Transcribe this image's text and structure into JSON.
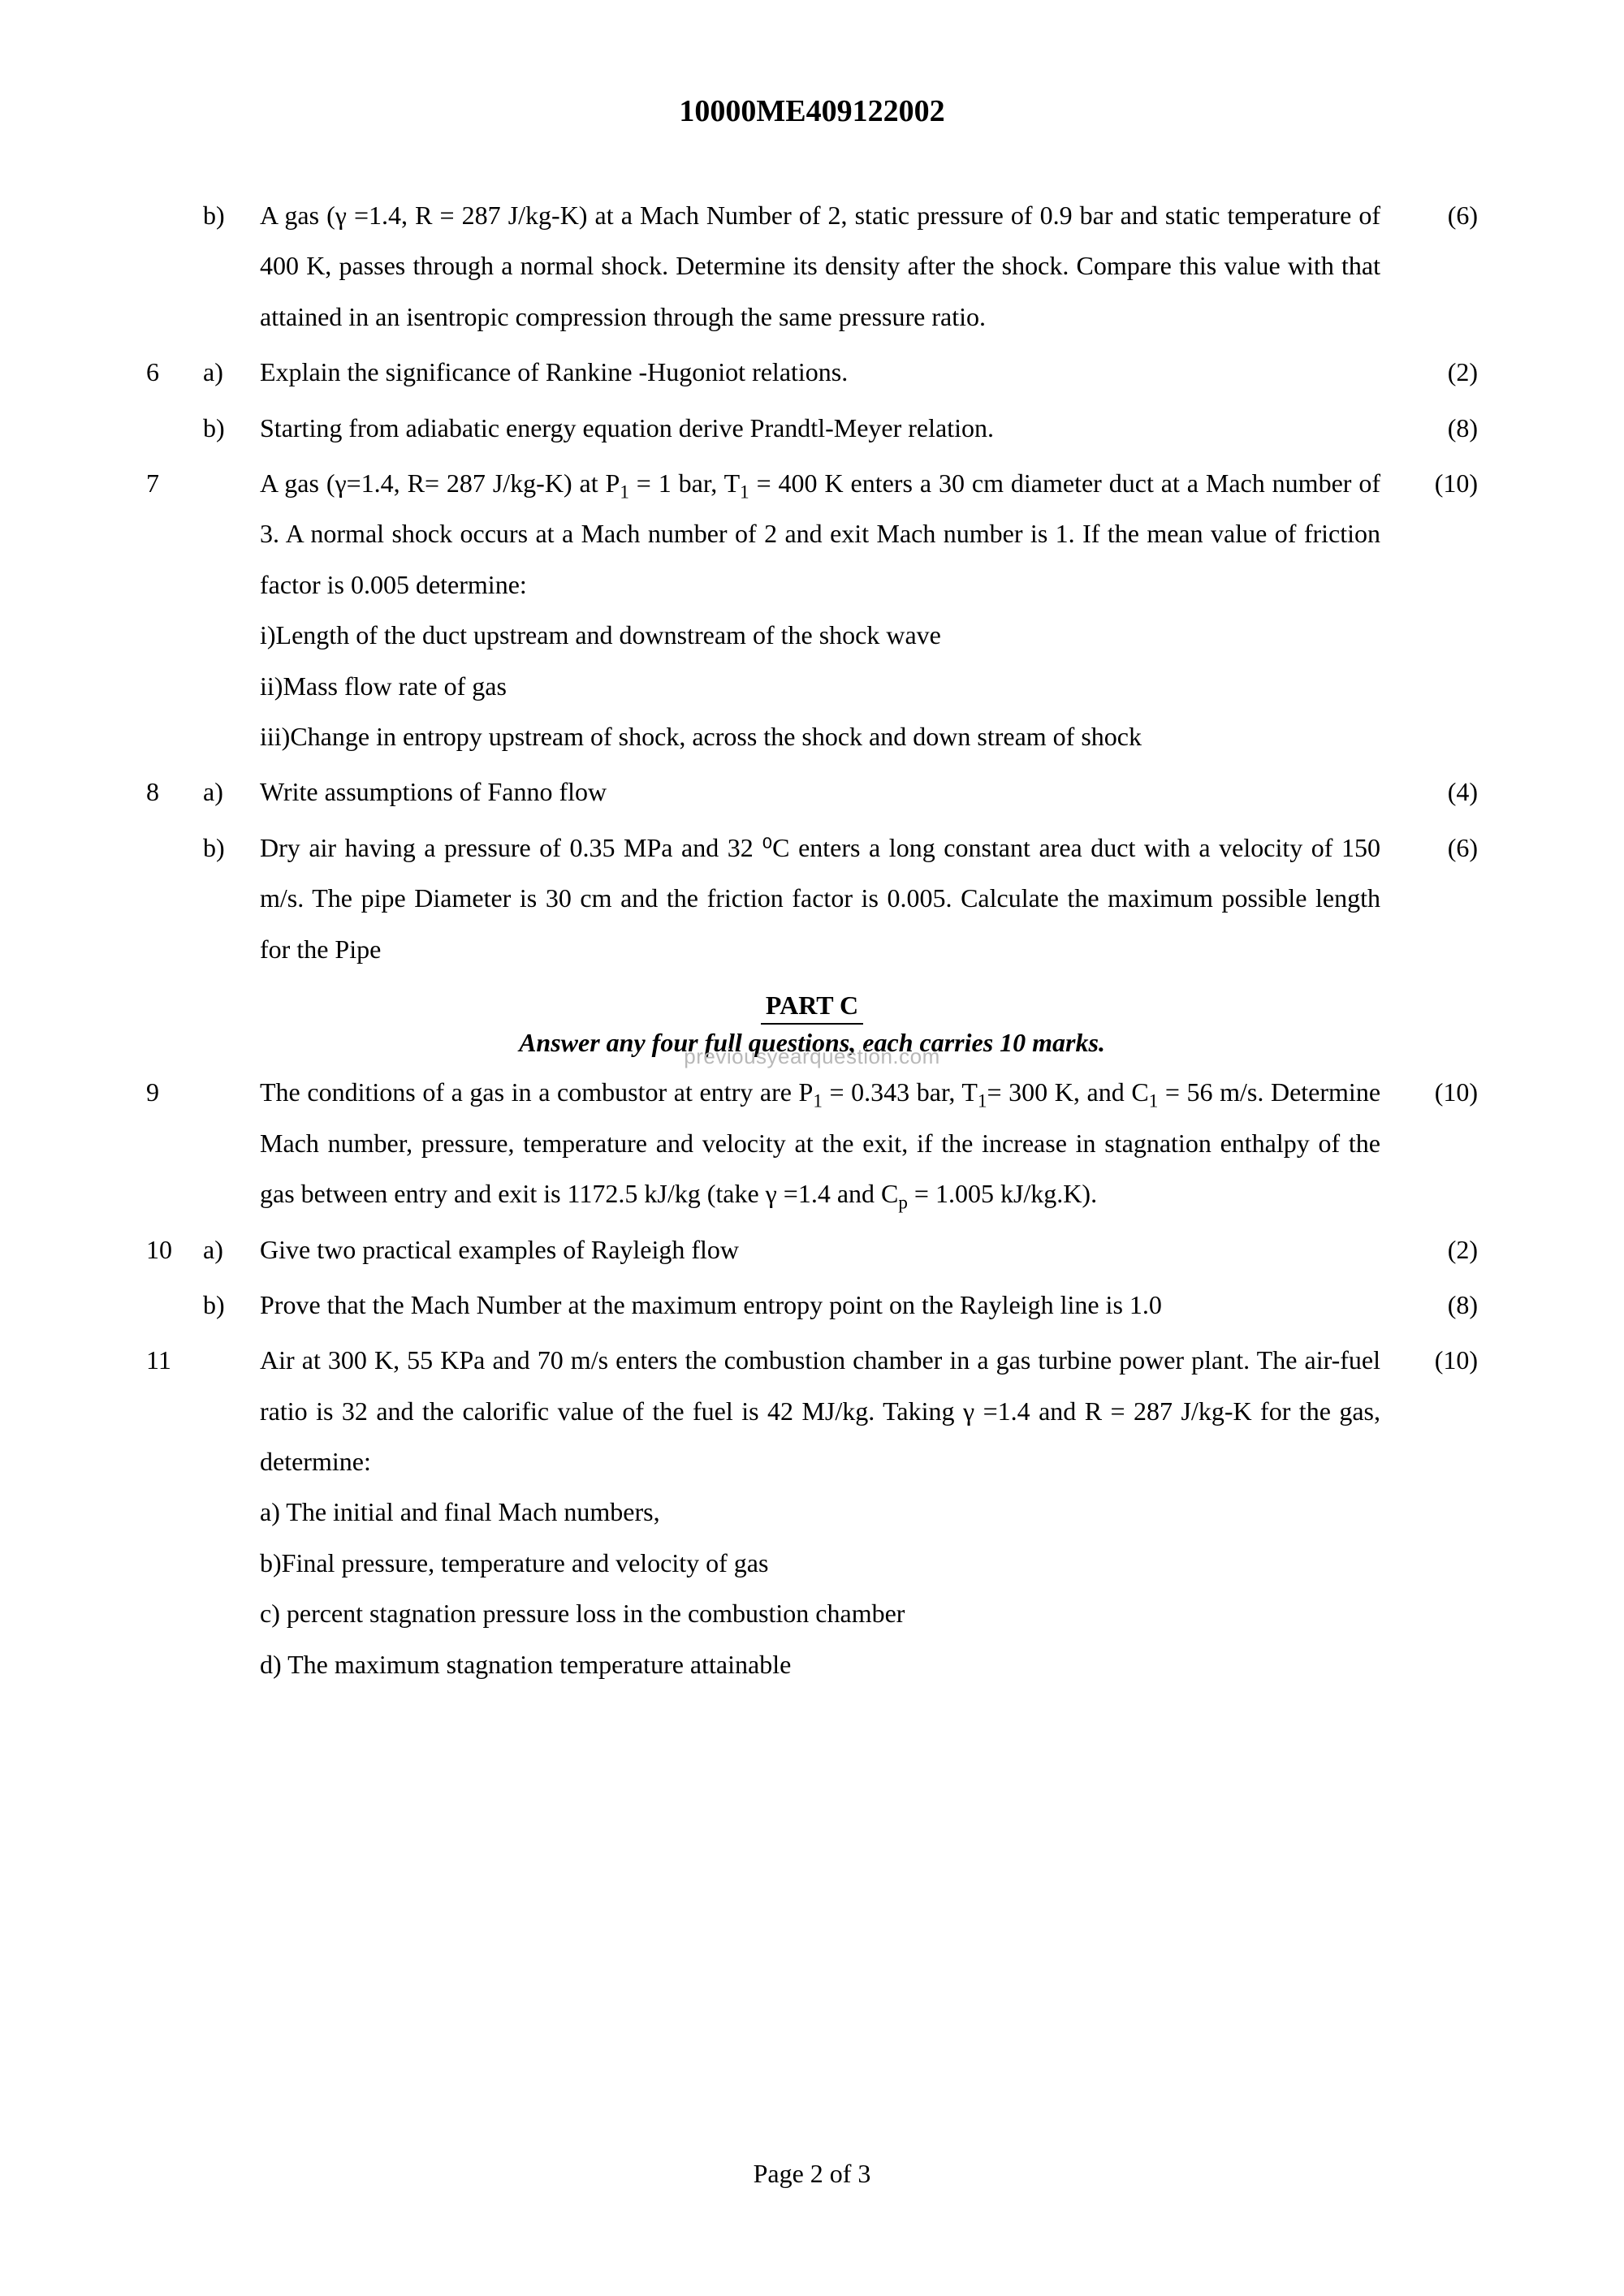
{
  "header": {
    "code": "10000ME409122002"
  },
  "watermark": {
    "text": "previousyearquestion.com"
  },
  "questions": [
    {
      "qnum": "",
      "sub": "b)",
      "marks": "(6)",
      "text": "A gas (γ =1.4, R = 287 J/kg-K) at a Mach Number of 2, static pressure of 0.9 bar and static temperature of  400 K, passes  through a normal shock. Determine its density after the shock. Compare this value with that attained in an isentropic compression through the same pressure ratio."
    },
    {
      "qnum": "6",
      "sub": "a)",
      "marks": "(2)",
      "text": "Explain the significance of Rankine -Hugoniot relations."
    },
    {
      "qnum": "",
      "sub": "b)",
      "marks": "(8)",
      "text": "Starting from adiabatic energy equation derive Prandtl-Meyer relation."
    },
    {
      "qnum": "7",
      "sub": "",
      "marks": "(10)",
      "html": "A gas (γ=1.4, R= 287 J/kg-K) at P<sub>1</sub> = 1 bar, T<sub>1</sub> = 400 K enters a 30 cm diameter duct at a Mach number of 3. A normal shock occurs at a Mach number of 2 and exit Mach number is 1. If the mean value of friction  factor is 0.005 determine:<br>i)Length of the duct upstream and downstream of the shock wave<br>ii)Mass flow rate of gas<br>iii)Change in entropy upstream of shock, across the shock and down stream of shock"
    },
    {
      "qnum": "8",
      "sub": "a)",
      "marks": "(4)",
      "text": "Write assumptions of Fanno flow"
    },
    {
      "qnum": "",
      "sub": "b)",
      "marks": "(6)",
      "text": "Dry air having a pressure of 0.35 MPa and 32 ⁰C enters a long constant area duct with a velocity of 150 m/s. The pipe Diameter is 30 cm and the friction factor is 0.005.   Calculate the maximum possible length for the Pipe"
    }
  ],
  "partC": {
    "title": "PART C",
    "instruction": "Answer any four full questions, each carries 10 marks."
  },
  "questions2": [
    {
      "qnum": "9",
      "sub": "",
      "marks": "(10)",
      "html": "The conditions of a gas in a combustor at entry are P<sub>1</sub> = 0.343 bar, T<sub>1</sub>= 300 K, and C<sub>1</sub> = 56 m/s.  Determine Mach number, pressure, temperature and velocity at the exit,  if the increase in stagnation enthalpy of  the gas between entry and exit is  1172.5 kJ/kg  (take γ =1.4 and C<sub>p</sub> = 1.005 kJ/kg.K)."
    },
    {
      "qnum": "10",
      "sub": "a)",
      "marks": "(2)",
      "text": "Give two practical examples of Rayleigh flow"
    },
    {
      "qnum": "",
      "sub": "b)",
      "marks": "(8)",
      "text": "Prove that the Mach Number at the maximum entropy point on the Rayleigh line is 1.0"
    },
    {
      "qnum": "11",
      "sub": "",
      "marks": "(10)",
      "html": "Air at 300 K, 55 KPa and 70 m/s enters the  combustion chamber in a gas turbine power plant. The air-fuel ratio is 32 and the calorific value of the fuel is 42 MJ/kg. Taking γ =1.4 and R = 287 J/kg-K for the gas, determine:<br>a) The initial and final Mach numbers,<br>b)Final pressure, temperature and velocity of gas<br>c) percent stagnation pressure loss in the combustion chamber<br>d) The maximum stagnation temperature attainable"
    }
  ],
  "footer": {
    "page": "Page 2 of 3"
  }
}
